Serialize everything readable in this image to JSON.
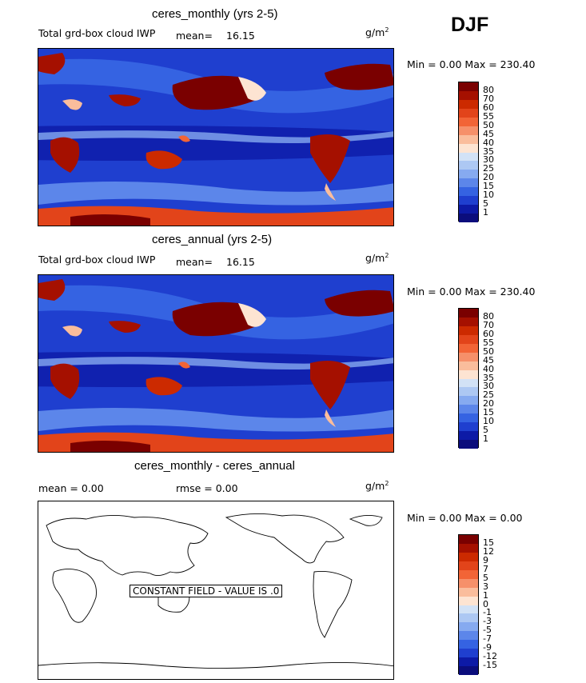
{
  "season": "DJF",
  "panels": [
    {
      "title": "ceres_monthly (yrs 2-5)",
      "variable": "Total grd-box cloud IWP",
      "mean_label": "mean=",
      "mean_value": "16.15",
      "units": "g/m",
      "units_exp": "2",
      "minmax": "Min =    0.00 Max = 230.40",
      "levels": [
        "80",
        "70",
        "60",
        "55",
        "50",
        "45",
        "40",
        "35",
        "30",
        "25",
        "20",
        "15",
        "10",
        "5",
        "1"
      ]
    },
    {
      "title": "ceres_annual (yrs 2-5)",
      "variable": "Total grd-box cloud IWP",
      "mean_label": "mean=",
      "mean_value": "16.15",
      "units": "g/m",
      "units_exp": "2",
      "minmax": "Min =    0.00 Max = 230.40",
      "levels": [
        "80",
        "70",
        "60",
        "55",
        "50",
        "45",
        "40",
        "35",
        "30",
        "25",
        "20",
        "15",
        "10",
        "5",
        "1"
      ]
    },
    {
      "title": "ceres_monthly - ceres_annual",
      "mean_text": "mean =    0.00",
      "rmse_text": "rmse =    0.00",
      "units": "g/m",
      "units_exp": "2",
      "minmax": "Min =    0.00 Max =    0.00",
      "levels": [
        "15",
        "12",
        "9",
        "7",
        "5",
        "3",
        "1",
        "0",
        "-1",
        "-3",
        "-5",
        "-7",
        "-9",
        "-12",
        "-15"
      ],
      "constant_label": "CONSTANT FIELD - VALUE IS .0"
    }
  ],
  "colors": {
    "abs_scale": [
      "#7a0000",
      "#a51000",
      "#cc2a00",
      "#e2441a",
      "#f26436",
      "#f6906a",
      "#fabd9c",
      "#fde4d2",
      "#d2e2f6",
      "#adc8f3",
      "#86aaf0",
      "#5c86ea",
      "#3563e2",
      "#1f3fcf",
      "#0d1aa6",
      "#0b0d7c"
    ],
    "diff_scale": [
      "#7a0000",
      "#a51000",
      "#cc2a00",
      "#e2441a",
      "#f26436",
      "#f6906a",
      "#fabd9c",
      "#fde4d2",
      "#d2e2f6",
      "#adc8f3",
      "#86aaf0",
      "#5c86ea",
      "#3563e2",
      "#1f3fcf",
      "#0d1aa6",
      "#0b0d7c"
    ]
  }
}
